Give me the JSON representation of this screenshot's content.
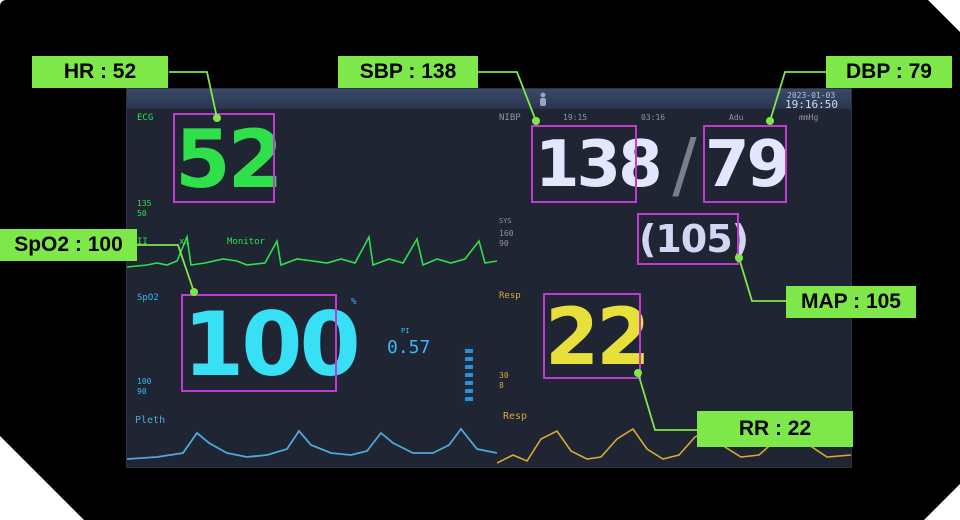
{
  "monitor": {
    "date": "2023-01-03",
    "clock": "19:16:50",
    "ecg": {
      "label": "ECG",
      "upper": "135",
      "lower": "50",
      "lead": "II",
      "filter": "x1",
      "mode": "Monitor",
      "value": "52",
      "color": "#2fe04a"
    },
    "nibp": {
      "label": "NIBP",
      "time": "19:15",
      "interval": "03:16",
      "mode": "Adu",
      "unit": "mmHg",
      "systolic": "138",
      "diastolic": "79",
      "separator": "/",
      "map": "(105)",
      "sys_label": "SYS",
      "sys_upper": "160",
      "sys_lower": "90",
      "color": "#e4e6ff"
    },
    "spo2": {
      "label": "SpO2",
      "upper": "100",
      "lower": "90",
      "value": "100",
      "pi_label": "PI",
      "pi_value": "0.57",
      "percent": "%",
      "color": "#38e0f5"
    },
    "resp": {
      "label": "Resp",
      "upper": "30",
      "lower": "8",
      "value": "22",
      "wave_label": "Resp",
      "color": "#e8e03a"
    },
    "pleth": {
      "label": "Pleth"
    }
  },
  "annotations": {
    "hr": "HR : 52",
    "sbp": "SBP : 138",
    "dbp": "DBP : 79",
    "spo2": "SpO2 : 100",
    "map": "MAP : 105",
    "rr": "RR : 22",
    "color": "#7ee84a",
    "box_color": "#c23bd0"
  }
}
